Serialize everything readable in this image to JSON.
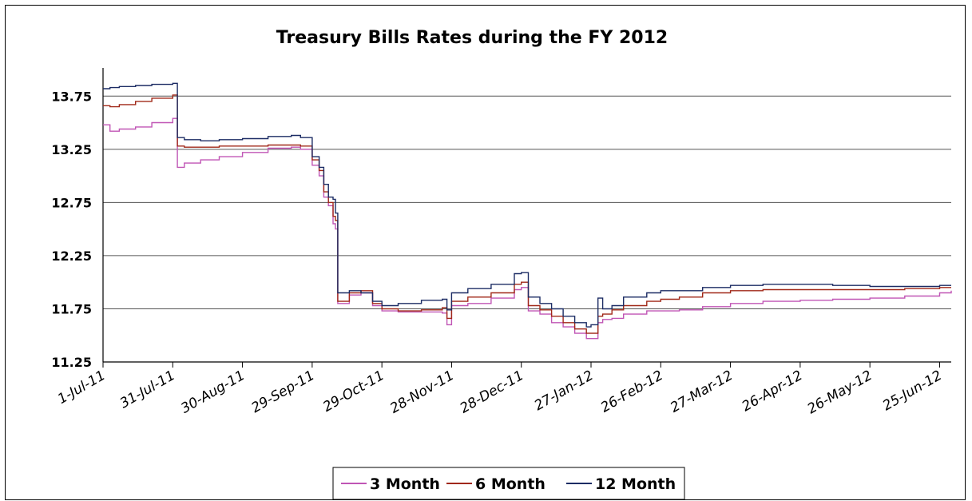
{
  "chart_data": {
    "type": "line",
    "title": "Treasury Bills Rates during the FY 2012",
    "xlabel": "",
    "ylabel": "",
    "ylim": [
      11.25,
      14.0
    ],
    "yticks": [
      "11.25",
      "11.75",
      "12.25",
      "12.75",
      "13.25",
      "13.75"
    ],
    "xticks": [
      "1-Jul-11",
      "31-Jul-11",
      "30-Aug-11",
      "29-Sep-11",
      "29-Oct-11",
      "28-Nov-11",
      "28-Dec-11",
      "27-Jan-12",
      "26-Feb-12",
      "27-Mar-12",
      "26-Apr-12",
      "26-May-12",
      "25-Jun-12"
    ],
    "grid": "horizontal",
    "legend": "bottom",
    "x": [
      "2011-07-01",
      "2011-07-04",
      "2011-07-08",
      "2011-07-15",
      "2011-07-22",
      "2011-07-31",
      "2011-08-02",
      "2011-08-05",
      "2011-08-12",
      "2011-08-20",
      "2011-08-30",
      "2011-09-10",
      "2011-09-20",
      "2011-09-24",
      "2011-09-29",
      "2011-10-02",
      "2011-10-04",
      "2011-10-06",
      "2011-10-08",
      "2011-10-09",
      "2011-10-10",
      "2011-10-15",
      "2011-10-20",
      "2011-10-25",
      "2011-10-29",
      "2011-11-05",
      "2011-11-15",
      "2011-11-24",
      "2011-11-26",
      "2011-11-28",
      "2011-12-05",
      "2011-12-15",
      "2011-12-25",
      "2011-12-28",
      "2011-12-31",
      "2012-01-05",
      "2012-01-10",
      "2012-01-15",
      "2012-01-20",
      "2012-01-25",
      "2012-01-27",
      "2012-01-30",
      "2012-02-01",
      "2012-02-05",
      "2012-02-10",
      "2012-02-20",
      "2012-02-26",
      "2012-03-05",
      "2012-03-15",
      "2012-03-27",
      "2012-04-10",
      "2012-04-26",
      "2012-05-10",
      "2012-05-26",
      "2012-06-10",
      "2012-06-25",
      "2012-06-30"
    ],
    "series": [
      {
        "name": "3 Month",
        "color": "#c055b5",
        "values": [
          13.48,
          13.42,
          13.44,
          13.46,
          13.5,
          13.54,
          13.08,
          13.12,
          13.15,
          13.18,
          13.22,
          13.26,
          13.27,
          13.25,
          13.1,
          13.0,
          12.8,
          12.72,
          12.55,
          12.5,
          11.8,
          11.88,
          11.9,
          11.78,
          11.73,
          11.72,
          11.72,
          11.71,
          11.6,
          11.78,
          11.8,
          11.85,
          11.93,
          11.95,
          11.73,
          11.7,
          11.62,
          11.58,
          11.52,
          11.47,
          11.47,
          11.62,
          11.65,
          11.66,
          11.7,
          11.73,
          11.73,
          11.74,
          11.77,
          11.8,
          11.82,
          11.83,
          11.84,
          11.85,
          11.87,
          11.9,
          11.92
        ]
      },
      {
        "name": "6 Month",
        "color": "#a02818",
        "values": [
          13.66,
          13.65,
          13.67,
          13.7,
          13.73,
          13.76,
          13.28,
          13.27,
          13.27,
          13.28,
          13.28,
          13.29,
          13.29,
          13.28,
          13.15,
          13.05,
          12.85,
          12.75,
          12.62,
          12.58,
          11.82,
          11.9,
          11.92,
          11.8,
          11.75,
          11.73,
          11.74,
          11.76,
          11.66,
          11.82,
          11.86,
          11.9,
          11.98,
          12.0,
          11.78,
          11.74,
          11.68,
          11.62,
          11.56,
          11.52,
          11.52,
          11.68,
          11.7,
          11.74,
          11.78,
          11.82,
          11.84,
          11.86,
          11.9,
          11.92,
          11.93,
          11.93,
          11.93,
          11.93,
          11.94,
          11.95,
          11.95
        ]
      },
      {
        "name": "12 Month",
        "color": "#1c2c64",
        "values": [
          13.82,
          13.83,
          13.84,
          13.85,
          13.86,
          13.87,
          13.36,
          13.34,
          13.33,
          13.34,
          13.35,
          13.37,
          13.38,
          13.36,
          13.18,
          13.08,
          12.92,
          12.8,
          12.78,
          12.65,
          11.9,
          11.92,
          11.9,
          11.82,
          11.78,
          11.8,
          11.83,
          11.84,
          11.74,
          11.9,
          11.94,
          11.98,
          12.08,
          12.09,
          11.86,
          11.8,
          11.75,
          11.68,
          11.62,
          11.58,
          11.6,
          11.85,
          11.75,
          11.78,
          11.86,
          11.9,
          11.92,
          11.92,
          11.95,
          11.97,
          11.98,
          11.98,
          11.97,
          11.96,
          11.96,
          11.97,
          11.97
        ]
      }
    ]
  }
}
